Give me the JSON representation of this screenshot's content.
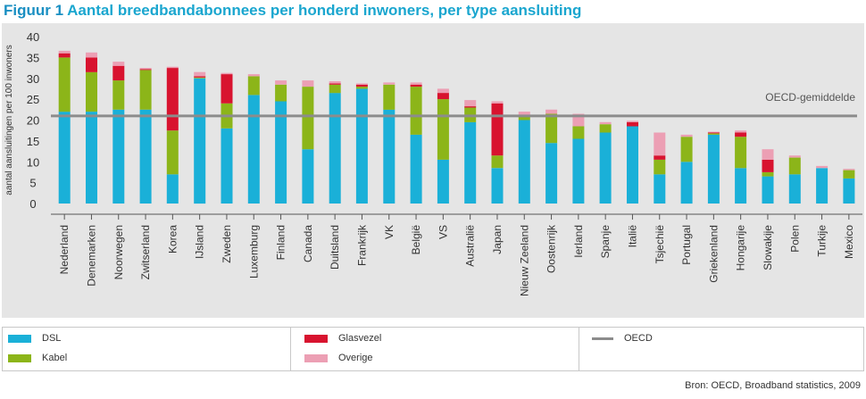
{
  "title": {
    "figure_label": "Figuur 1",
    "text": "Aantal breedbandabonnees per honderd inwoners, per type aansluiting"
  },
  "chart_data": {
    "type": "bar",
    "stacked": true,
    "title": "Aantal breedbandabonnees per honderd inwoners, per type aansluiting",
    "ylabel": "aantal aansluitingen per 100 inwoners",
    "xlabel": "",
    "ylim": [
      0,
      40
    ],
    "yticks": [
      0,
      5,
      10,
      15,
      20,
      25,
      30,
      35,
      40
    ],
    "grid": false,
    "categories": [
      "Nederland",
      "Denemarken",
      "Noorwegen",
      "Zwitserland",
      "Korea",
      "IJsland",
      "Zweden",
      "Luxemburg",
      "Finland",
      "Canada",
      "Duitsland",
      "Frankrijk",
      "VK",
      "België",
      "VS",
      "Australië",
      "Japan",
      "Nieuw Zeeland",
      "Oostenrijk",
      "Ierland",
      "Spanje",
      "Italië",
      "Tsjechië",
      "Portugal",
      "Griekenland",
      "Hongarije",
      "Slowakije",
      "Polen",
      "Turkije",
      "Mexico"
    ],
    "series": [
      {
        "name": "DSL",
        "color": "#1ab0d8",
        "values": [
          22.0,
          22.0,
          22.5,
          22.5,
          7.0,
          30.0,
          18.0,
          26.0,
          24.5,
          13.0,
          26.5,
          27.5,
          22.5,
          16.5,
          10.5,
          19.5,
          8.5,
          20.0,
          14.5,
          15.5,
          17.0,
          18.5,
          7.0,
          10.0,
          16.5,
          8.5,
          6.5,
          7.0,
          8.5,
          6.0
        ]
      },
      {
        "name": "Kabel",
        "color": "#8cb519",
        "values": [
          13.0,
          9.5,
          7.0,
          9.5,
          10.5,
          0.2,
          6.0,
          4.5,
          4.0,
          15.0,
          2.0,
          0.5,
          6.0,
          11.5,
          14.5,
          3.5,
          3.0,
          1.0,
          7.0,
          3.0,
          2.0,
          0.0,
          3.5,
          6.0,
          0.3,
          7.5,
          1.0,
          4.0,
          0.0,
          2.0
        ]
      },
      {
        "name": "Glasvezel",
        "color": "#d8132f",
        "values": [
          1.0,
          3.5,
          3.5,
          0.2,
          15.0,
          0.3,
          7.0,
          0.0,
          0.0,
          0.0,
          0.3,
          0.5,
          0.0,
          0.5,
          1.5,
          0.3,
          12.5,
          0.0,
          0.0,
          0.0,
          0.0,
          1.0,
          1.0,
          0.0,
          0.2,
          1.0,
          3.0,
          0.0,
          0.0,
          0.0
        ]
      },
      {
        "name": "Overige",
        "color": "#ec9fb4",
        "values": [
          0.6,
          1.2,
          1.0,
          0.3,
          0.3,
          1.0,
          0.3,
          0.5,
          1.0,
          1.5,
          0.5,
          0.3,
          0.5,
          0.5,
          1.0,
          1.5,
          0.5,
          1.0,
          1.0,
          3.0,
          0.5,
          0.3,
          5.5,
          0.5,
          0.2,
          0.5,
          2.5,
          0.5,
          0.5,
          0.3
        ]
      }
    ],
    "reference_line": {
      "name": "OECD",
      "label": "OECD-gemiddelde",
      "value": 21.0,
      "color": "#8c8c8c"
    },
    "legend": [
      {
        "name": "DSL",
        "color": "#1ab0d8",
        "kind": "box"
      },
      {
        "name": "Kabel",
        "color": "#8cb519",
        "kind": "box"
      },
      {
        "name": "Glasvezel",
        "color": "#d8132f",
        "kind": "box"
      },
      {
        "name": "Overige",
        "color": "#ec9fb4",
        "kind": "box"
      },
      {
        "name": "OECD",
        "color": "#8c8c8c",
        "kind": "line"
      }
    ]
  },
  "source": "Bron: OECD, Broadband statistics, 2009"
}
